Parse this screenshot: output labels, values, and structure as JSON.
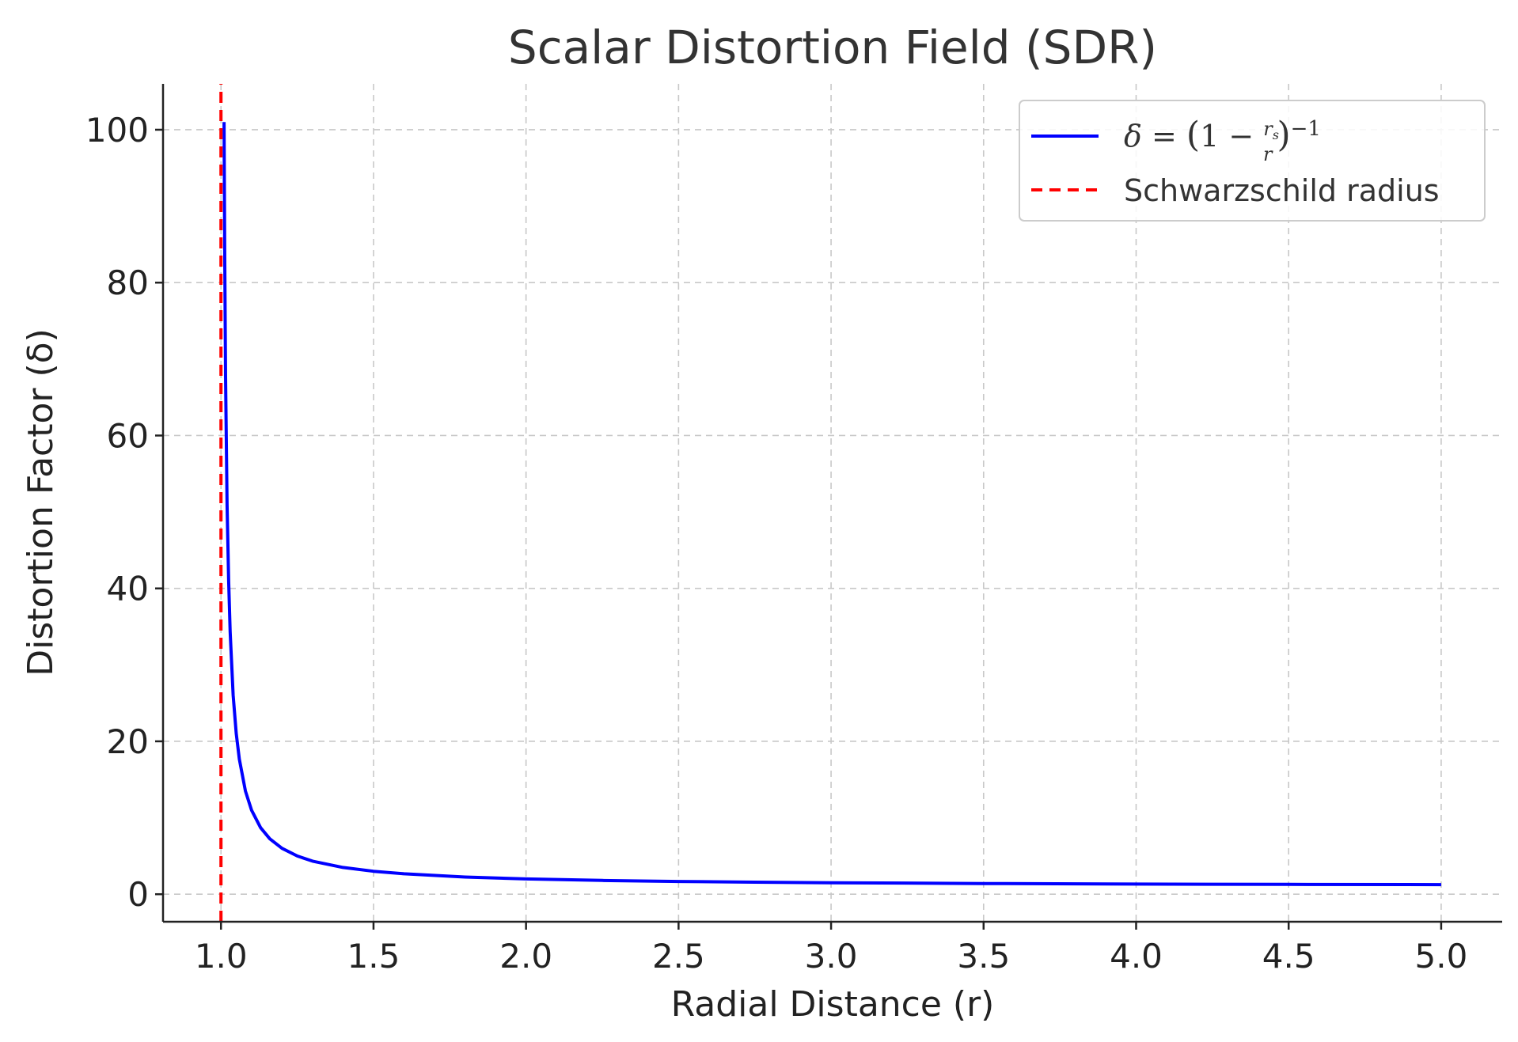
{
  "chart_data": {
    "type": "line",
    "title": "Scalar Distortion Field (SDR)",
    "xlabel": "Radial Distance (r)",
    "ylabel": "Distortion Factor (δ)",
    "xlim": [
      0.81,
      5.2
    ],
    "ylim": [
      -3.6,
      106
    ],
    "x_ticks": [
      1.0,
      1.5,
      2.0,
      2.5,
      3.0,
      3.5,
      4.0,
      4.5,
      5.0
    ],
    "x_tick_labels": [
      "1.0",
      "1.5",
      "2.0",
      "2.5",
      "3.0",
      "3.5",
      "4.0",
      "4.5",
      "5.0"
    ],
    "y_ticks": [
      0,
      20,
      40,
      60,
      80,
      100
    ],
    "y_tick_labels": [
      "0",
      "20",
      "40",
      "60",
      "80",
      "100"
    ],
    "grid": true,
    "legend_position": "top-right",
    "series": [
      {
        "name": "δ = (1 − r_s/r)^−1",
        "color": "#0000ff",
        "style": "solid",
        "x": [
          1.01,
          1.012,
          1.015,
          1.02,
          1.025,
          1.03,
          1.04,
          1.05,
          1.06,
          1.08,
          1.1,
          1.13,
          1.16,
          1.2,
          1.25,
          1.3,
          1.4,
          1.5,
          1.6,
          1.8,
          2.0,
          2.25,
          2.5,
          2.75,
          3.0,
          3.5,
          4.0,
          4.5,
          5.0
        ],
        "y": [
          101.0,
          84.33,
          67.67,
          51.0,
          41.0,
          34.33,
          26.0,
          21.0,
          17.67,
          13.5,
          11.0,
          8.69,
          7.25,
          6.0,
          5.0,
          4.33,
          3.5,
          3.0,
          2.67,
          2.25,
          2.0,
          1.8,
          1.67,
          1.57,
          1.5,
          1.4,
          1.33,
          1.29,
          1.25
        ]
      },
      {
        "name": "Schwarzschild radius",
        "color": "#ff0000",
        "style": "dashed",
        "orientation": "vertical",
        "x": [
          1.0,
          1.0
        ],
        "y": [
          -3.6,
          106
        ]
      }
    ]
  },
  "legend": {
    "delta_label": "δ = (1 − r_s/r)^−1",
    "schwarzschild_label": "Schwarzschild radius"
  }
}
